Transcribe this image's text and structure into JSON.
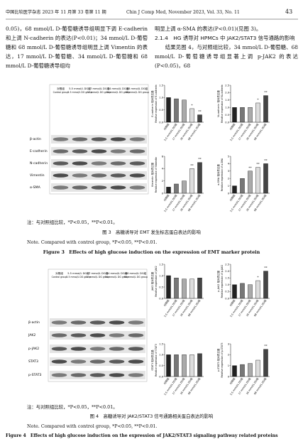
{
  "header": {
    "journal_cn": "中国比较医学杂志 2023 年 11 月第 33 卷第 11 期",
    "journal_en": "Chin J Comp Med, November 2023, Vol. 33, No. 11",
    "page": "43"
  },
  "body": {
    "left": "0.05)，68 mmol/L D-葡萄糖诱导组明显下调 E-cadherin 和上调 N-cadherin 的表达(P<0.01)；34 mmol/L D-葡萄糖和 68 mmol/L D-葡萄糖诱导组明显上调 Vimentin 的表达，17 mmol/L D-葡萄糖、34 mmol/L D-葡萄糖和 68 mmol/L D-葡萄糖诱导组均",
    "right_p1": "明显上调 α-SMA 的表达(P<0.01)(见图 3)。",
    "right_heading": "2.1.4　HG 诱导对 HPMCs 中 JAK2/STAT3 信号通路的影响",
    "right_p2": "结果见图 4，与对照组比较，34 mmol/L D-葡萄糖、68 mmol/L D-葡萄糖诱导组显著上调 p-JAK2 的表达(P<0.05)，68"
  },
  "groups": [
    {
      "cn": "对照组",
      "en": "Control group"
    },
    {
      "cn": "5.5 mmol/L DG组",
      "en": "5.5 mmol/L DG group"
    },
    {
      "cn": "17 mmol/L DG组",
      "en": "17 mmol/L DG group"
    },
    {
      "cn": "34 mmol/L DG组",
      "en": "34 mmol/L DG group"
    },
    {
      "cn": "68 mmol/L DG组",
      "en": "68 mmol/L DG group"
    }
  ],
  "figure3": {
    "blot_rows": [
      "β-actin",
      "E-cadherin",
      "N-cadherin",
      "Vimentin",
      "α-SMA"
    ],
    "charts": [
      {
        "type": "bar",
        "ylabel_cn": "E-cadherin 相对表达量",
        "ylabel_en": "Relative expression of E-cadherin",
        "values": [
          1.0,
          0.95,
          0.9,
          0.55,
          0.3
        ],
        "sig": [
          null,
          null,
          null,
          "*",
          "**"
        ],
        "colors": [
          "#222",
          "#777",
          "#aaa",
          "#ddd",
          "#444"
        ],
        "ylim": [
          0,
          1.5
        ],
        "yticks": [
          {
            "value": 0,
            "label": "0.0"
          },
          0.5,
          {
            "value": 1,
            "label": "1.0"
          },
          1.5
        ]
      },
      {
        "type": "bar",
        "ylabel_cn": "N-cadherin 相对表达量",
        "ylabel_en": "Relative expression of N-cadherin",
        "values": [
          1.0,
          1.0,
          1.0,
          1.3,
          1.8
        ],
        "sig": [
          null,
          null,
          null,
          "*",
          "**"
        ],
        "colors": [
          "#222",
          "#777",
          "#aaa",
          "#ddd",
          "#444"
        ],
        "ylim": [
          0,
          2.5
        ],
        "yticks": [
          {
            "value": 0,
            "label": "0.0"
          },
          0.5,
          {
            "value": 1,
            "label": "1.0"
          },
          1.5,
          {
            "value": 2,
            "label": "2.0"
          },
          2.5
        ]
      },
      {
        "type": "bar",
        "ylabel_cn": "Vimentin 相对表达量",
        "ylabel_en": "Relative expression of Vimentin",
        "values": [
          1.0,
          1.5,
          2.0,
          4.0,
          5.0
        ],
        "sig": [
          null,
          null,
          null,
          "**",
          "**"
        ],
        "colors": [
          "#222",
          "#777",
          "#aaa",
          "#ddd",
          "#444"
        ],
        "ylim": [
          0,
          6
        ],
        "yticks": [
          0,
          2,
          4,
          6
        ]
      },
      {
        "type": "bar",
        "ylabel_cn": "α-SMA 相对表达量",
        "ylabel_en": "Relative expression of α-SMA",
        "values": [
          1.0,
          2.0,
          3.0,
          3.5,
          4.0
        ],
        "sig": [
          null,
          null,
          "**",
          "**",
          "**"
        ],
        "colors": [
          "#222",
          "#777",
          "#aaa",
          "#ddd",
          "#444"
        ],
        "ylim": [
          0,
          5
        ],
        "yticks": [
          0,
          1,
          2,
          3,
          4,
          5
        ]
      }
    ],
    "note_cn": "注：与对照组比较，*P<0.05，**P<0.01。",
    "caption_cn": "图 3　高糖诱导对 EMT 发生标志蛋白表达的影响",
    "note_en": "Note. Compared with control group, *P<0.05, **P<0.01.",
    "caption_en": "Figure 3　Effects of high glucose induction on the expression of EMT marker protein"
  },
  "figure4": {
    "blot_rows": [
      "β-actin",
      "JAK2",
      "p-JAK2",
      "STAT3",
      "p-STAT3"
    ],
    "charts": [
      {
        "type": "bar",
        "ylabel_cn": "JAK2 相对表达量",
        "ylabel_en": "Relative expression of JAK2",
        "values": [
          1.0,
          0.9,
          0.85,
          0.85,
          0.9
        ],
        "sig": [
          null,
          null,
          null,
          null,
          null
        ],
        "colors": [
          "#222",
          "#777",
          "#aaa",
          "#ddd",
          "#444"
        ],
        "ylim": [
          0,
          1.5
        ],
        "yticks": [
          {
            "value": 0,
            "label": "0.0"
          },
          0.5,
          {
            "value": 1,
            "label": "1.0"
          },
          1.5
        ]
      },
      {
        "type": "bar",
        "ylabel_cn": "p-JAK2 相对表达量",
        "ylabel_en": "Relative expression of p-JAK2",
        "values": [
          1.0,
          1.1,
          1.0,
          1.3,
          2.0
        ],
        "sig": [
          null,
          null,
          null,
          "*",
          "**"
        ],
        "colors": [
          "#222",
          "#777",
          "#aaa",
          "#ddd",
          "#444"
        ],
        "ylim": [
          0,
          2.5
        ],
        "yticks": [
          {
            "value": 0,
            "label": "0.0"
          },
          0.5,
          {
            "value": 1,
            "label": "1.0"
          },
          1.5,
          {
            "value": 2,
            "label": "2.0"
          },
          2.5
        ]
      },
      {
        "type": "bar",
        "ylabel_cn": "STAT3 相对表达量",
        "ylabel_en": "Relative expression of STAT3",
        "values": [
          1.0,
          1.0,
          1.0,
          1.0,
          1.05
        ],
        "sig": [
          null,
          null,
          null,
          null,
          null
        ],
        "colors": [
          "#222",
          "#777",
          "#aaa",
          "#ddd",
          "#444"
        ],
        "ylim": [
          0,
          1.5
        ],
        "yticks": [
          {
            "value": 0,
            "label": "0.0"
          },
          0.5,
          {
            "value": 1,
            "label": "1.0"
          },
          1.5
        ]
      },
      {
        "type": "bar",
        "ylabel_cn": "p-STAT3 相对表达量",
        "ylabel_en": "Relative expression of p-STAT3",
        "values": [
          1.0,
          1.1,
          1.2,
          1.5,
          2.5
        ],
        "sig": [
          null,
          null,
          null,
          null,
          "**"
        ],
        "colors": [
          "#222",
          "#777",
          "#aaa",
          "#ddd",
          "#444"
        ],
        "ylim": [
          0,
          3
        ],
        "yticks": [
          0,
          1,
          2,
          3
        ]
      }
    ],
    "note_cn": "注：与对照组比较，*P<0.05，**P<0.01。",
    "caption_cn": "图 4　高糖诱导对 JAK2/STAT3 信号通路相关蛋白表达的影响",
    "note_en": "Note. Compared with control group, *P<0.05, **P<0.01.",
    "caption_en": "Figure 4　Effects of high glucose induction on the expression of JAK2/STAT3 signaling pathway related proteins"
  }
}
